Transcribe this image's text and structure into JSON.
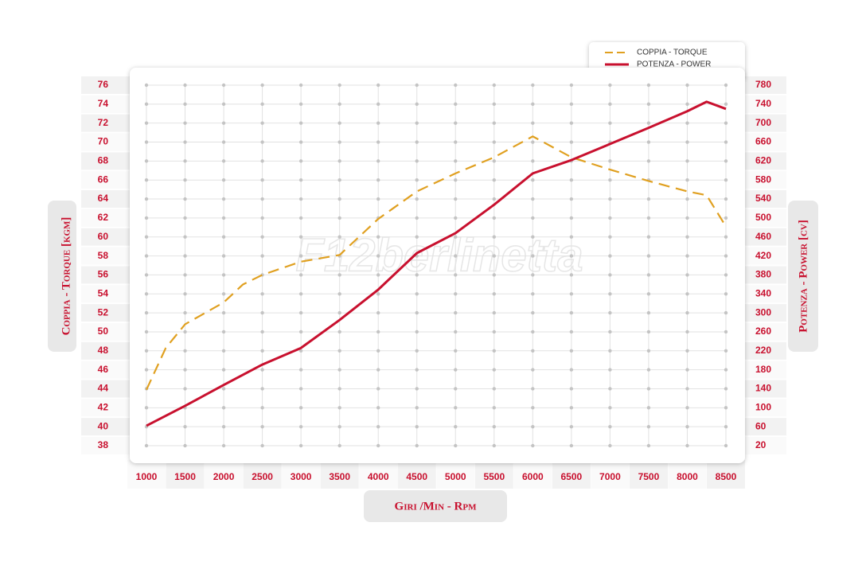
{
  "chart_data": {
    "type": "line",
    "watermark": "F12berlinetta",
    "x_label": "Giri /Min - Rpm",
    "y_label": "Coppia - Torque [kgm]",
    "y2_label": "Potenza - Power [cv]",
    "xlim": [
      1000,
      8500
    ],
    "xticks": [
      1000,
      1500,
      2000,
      2500,
      3000,
      3500,
      4000,
      4500,
      5000,
      5500,
      6000,
      6500,
      7000,
      7500,
      8000,
      8500
    ],
    "ylim": [
      38,
      76
    ],
    "yticks": [
      38,
      40,
      42,
      44,
      46,
      48,
      50,
      52,
      54,
      56,
      58,
      60,
      62,
      64,
      66,
      68,
      70,
      72,
      74,
      76
    ],
    "y2lim": [
      20,
      780
    ],
    "y2ticks": [
      20,
      60,
      100,
      140,
      180,
      220,
      260,
      300,
      340,
      380,
      420,
      460,
      500,
      540,
      580,
      620,
      660,
      700,
      740,
      780
    ],
    "grid": true,
    "legend": "top-right",
    "series": [
      {
        "name": "COPPIA - TORQUE",
        "color": "#e0a020",
        "dashed": true,
        "axis": "y",
        "x": [
          1000,
          1250,
          1500,
          2000,
          2250,
          2500,
          3000,
          3500,
          4000,
          4500,
          5000,
          5500,
          6000,
          6500,
          7000,
          7500,
          8000,
          8250,
          8500
        ],
        "values": [
          43.9,
          48.3,
          50.8,
          53.1,
          55,
          56,
          57.4,
          58.1,
          61.9,
          64.8,
          66.7,
          68.4,
          70.6,
          68.4,
          67.1,
          65.9,
          64.8,
          64.4,
          61.1
        ]
      },
      {
        "name": "POTENZA - POWER",
        "color": "#c8102e",
        "dashed": false,
        "axis": "y2",
        "x": [
          1000,
          1500,
          2000,
          2500,
          3000,
          3500,
          4000,
          4500,
          5000,
          5500,
          6000,
          6500,
          7000,
          7500,
          8000,
          8250,
          8500
        ],
        "values": [
          62,
          104,
          148,
          191,
          226,
          285,
          349,
          426,
          468,
          528,
          594,
          622,
          656,
          690,
          725,
          745,
          730
        ]
      }
    ]
  }
}
